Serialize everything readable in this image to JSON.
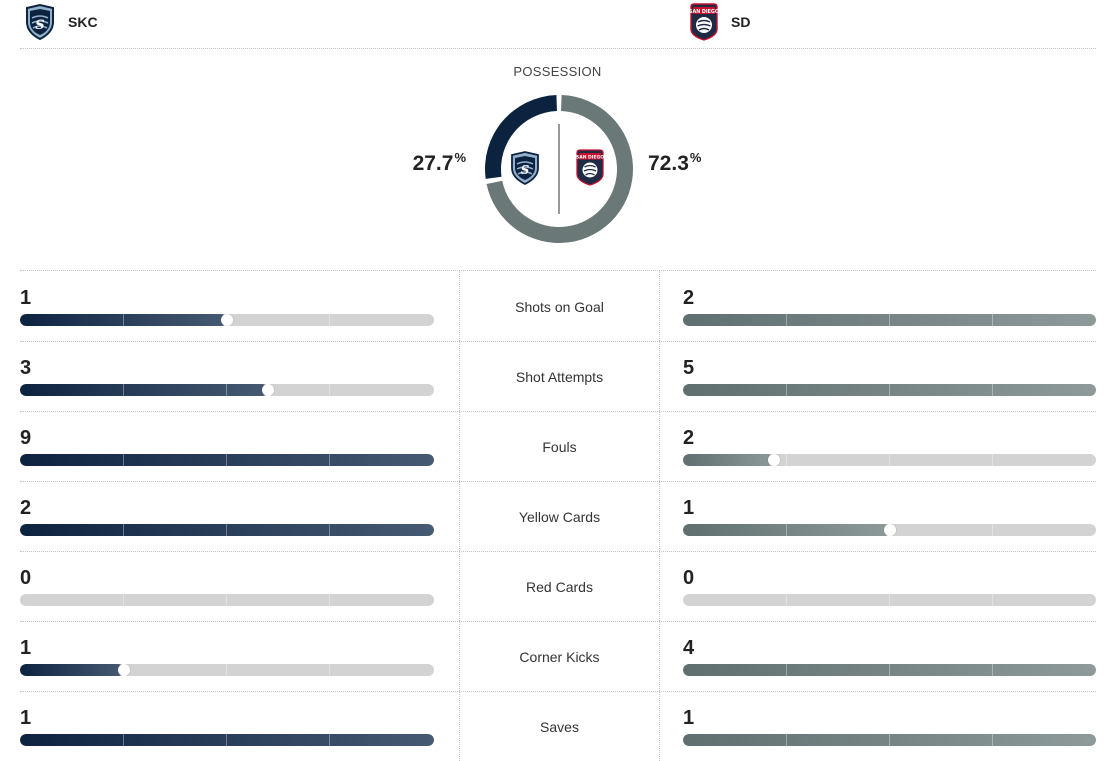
{
  "teams": {
    "away": {
      "abbr": "SKC",
      "crest": "skc-crest-icon",
      "color": "#0c2340"
    },
    "home": {
      "abbr": "SD",
      "crest": "sd-crest-icon",
      "crest_text": "SAN DIEGO",
      "color": "#6b7878"
    }
  },
  "possession": {
    "title": "POSSESSION",
    "away_value": "27.7",
    "home_value": "72.3",
    "unit": "%",
    "away_fraction": 0.277,
    "home_fraction": 0.723
  },
  "stats": [
    {
      "label": "Shots on Goal",
      "away": "1",
      "home": "2",
      "away_fill": 0.5,
      "home_fill": 1.0
    },
    {
      "label": "Shot Attempts",
      "away": "3",
      "home": "5",
      "away_fill": 0.6,
      "home_fill": 1.0
    },
    {
      "label": "Fouls",
      "away": "9",
      "home": "2",
      "away_fill": 1.0,
      "home_fill": 0.22
    },
    {
      "label": "Yellow Cards",
      "away": "2",
      "home": "1",
      "away_fill": 1.0,
      "home_fill": 0.5
    },
    {
      "label": "Red Cards",
      "away": "0",
      "home": "0",
      "away_fill": 0.0,
      "home_fill": 0.0
    },
    {
      "label": "Corner Kicks",
      "away": "1",
      "home": "4",
      "away_fill": 0.25,
      "home_fill": 1.0
    },
    {
      "label": "Saves",
      "away": "1",
      "home": "1",
      "away_fill": 1.0,
      "home_fill": 1.0
    }
  ]
}
